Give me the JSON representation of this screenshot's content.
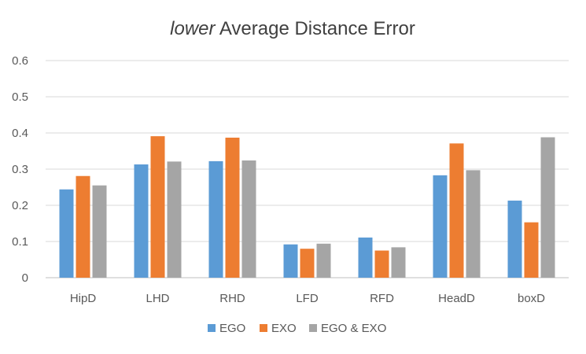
{
  "chart_data": {
    "type": "bar",
    "title_emphasis": "lower",
    "title_rest": " Average Distance Error",
    "categories": [
      "HipD",
      "LHD",
      "RHD",
      "LFD",
      "RFD",
      "HeadD",
      "boxD"
    ],
    "series": [
      {
        "name": "EGO",
        "color": "#5b9bd5",
        "values": [
          0.244,
          0.313,
          0.322,
          0.092,
          0.111,
          0.283,
          0.213
        ]
      },
      {
        "name": "EXO",
        "color": "#ed7d31",
        "values": [
          0.281,
          0.391,
          0.387,
          0.08,
          0.075,
          0.371,
          0.153
        ]
      },
      {
        "name": "EGO & EXO",
        "color": "#a5a5a5",
        "values": [
          0.255,
          0.321,
          0.324,
          0.094,
          0.084,
          0.297,
          0.388
        ]
      }
    ],
    "yticks": [
      "0",
      "0.1",
      "0.2",
      "0.3",
      "0.4",
      "0.5",
      "0.6"
    ],
    "ylim": [
      0,
      0.6
    ],
    "grid": true,
    "legend_position": "bottom",
    "xlabel": "",
    "ylabel": ""
  }
}
